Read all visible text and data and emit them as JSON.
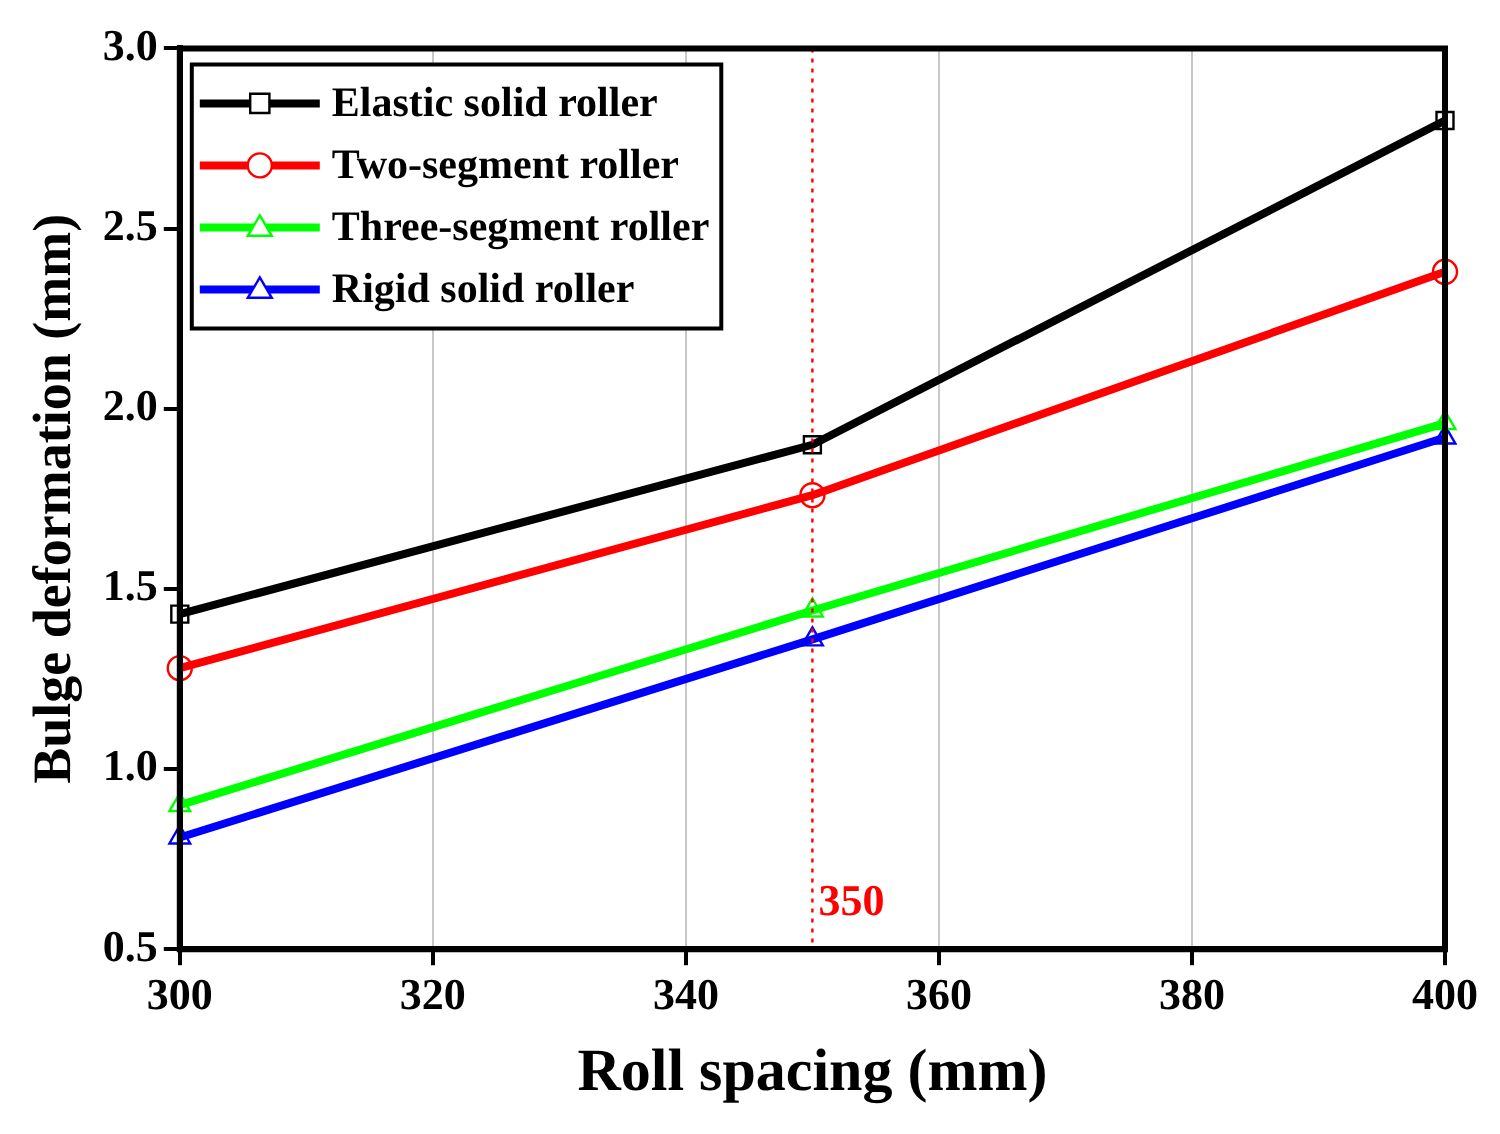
{
  "chart_data": {
    "type": "line",
    "xlabel": "Roll spacing (mm)",
    "ylabel": "Bulge deformation (mm)",
    "x": [
      300,
      350,
      400
    ],
    "series": [
      {
        "name": "Elastic solid roller",
        "color": "#000000",
        "marker": "square",
        "values": [
          1.43,
          1.9,
          2.8
        ]
      },
      {
        "name": "Two-segment roller",
        "color": "#ff0000",
        "marker": "circle",
        "values": [
          1.28,
          1.76,
          2.38
        ]
      },
      {
        "name": "Three-segment roller",
        "color": "#00ff00",
        "marker": "triangle",
        "values": [
          0.9,
          1.44,
          1.96
        ]
      },
      {
        "name": "Rigid solid roller",
        "color": "#0000ff",
        "marker": "triangle",
        "values": [
          0.81,
          1.36,
          1.92
        ]
      }
    ],
    "xlim": [
      300,
      400
    ],
    "xticks": [
      300,
      320,
      340,
      360,
      380,
      400
    ],
    "ylim": [
      0.5,
      3.0
    ],
    "yticks": [
      {
        "value": 0.5,
        "label": "0.5"
      },
      {
        "value": 1,
        "label": "1.0"
      },
      {
        "value": 1.5,
        "label": "1.5"
      },
      {
        "value": 2,
        "label": "2.0"
      },
      {
        "value": 2.5,
        "label": "2.5"
      },
      {
        "value": 3,
        "label": "3.0"
      }
    ],
    "grid": "x",
    "legend": "top left",
    "line_style": "solid",
    "ref_lines": [
      {
        "axis": "x",
        "value": 350,
        "label": "350",
        "color": "#ff0000",
        "line_style": "dotted"
      }
    ]
  }
}
